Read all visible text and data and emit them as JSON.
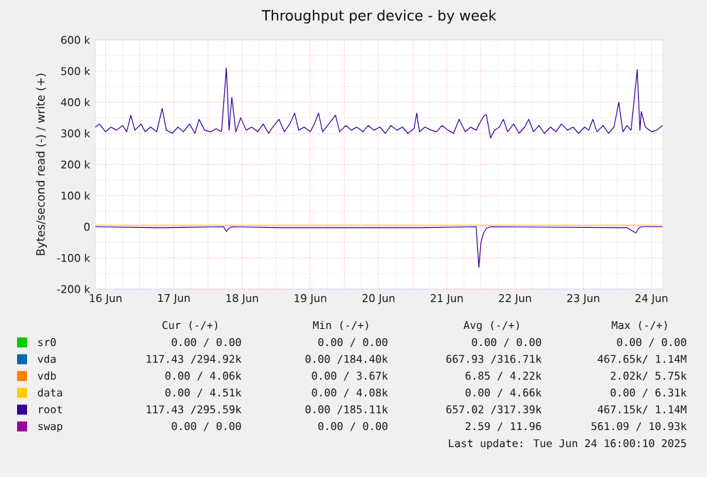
{
  "chart_data": {
    "type": "line",
    "title": "Throughput per device - by week",
    "ylabel": "Bytes/second read (-) / write (+)",
    "xlim": [
      "2025-06-16T08:24",
      "2025-06-24T16:00"
    ],
    "ylim": [
      -200,
      600
    ],
    "xticks": [
      {
        "value": "2025-06-16T12:00",
        "label": "16 Jun"
      },
      {
        "value": "2025-06-17T00:00",
        "label": null
      },
      {
        "value": "2025-06-17T12:00",
        "label": "17 Jun"
      },
      {
        "value": "2025-06-18T00:00",
        "label": null
      },
      {
        "value": "2025-06-18T12:00",
        "label": "18 Jun"
      },
      {
        "value": "2025-06-19T00:00",
        "label": null
      },
      {
        "value": "2025-06-19T12:00",
        "label": "19 Jun"
      },
      {
        "value": "2025-06-20T00:00",
        "label": null
      },
      {
        "value": "2025-06-20T12:00",
        "label": "20 Jun"
      },
      {
        "value": "2025-06-21T00:00",
        "label": null
      },
      {
        "value": "2025-06-21T12:00",
        "label": "21 Jun"
      },
      {
        "value": "2025-06-22T00:00",
        "label": null
      },
      {
        "value": "2025-06-22T12:00",
        "label": "22 Jun"
      },
      {
        "value": "2025-06-23T00:00",
        "label": null
      },
      {
        "value": "2025-06-23T12:00",
        "label": "23 Jun"
      },
      {
        "value": "2025-06-24T00:00",
        "label": null
      },
      {
        "value": "2025-06-24T12:00",
        "label": "24 Jun"
      }
    ],
    "yticks": [
      {
        "value": -200,
        "label": "-200 k"
      },
      {
        "value": -100,
        "label": "-100 k"
      },
      0,
      {
        "value": 100,
        "label": "100 k"
      },
      {
        "value": 200,
        "label": "200 k"
      },
      {
        "value": 300,
        "label": "300 k"
      },
      {
        "value": 400,
        "label": "400 k"
      },
      {
        "value": 500,
        "label": "500 k"
      },
      {
        "value": 600,
        "label": "600 k"
      }
    ],
    "grid": true,
    "legend": "bottom",
    "series": [
      {
        "name": "sr0",
        "color": "#00cc00"
      },
      {
        "name": "vda",
        "color": "#0066b3"
      },
      {
        "name": "vdb",
        "color": "#ff8000"
      },
      {
        "color": "#330099",
        "x": [
          "2025-06-16T08:24",
          "2025-06-17T07:12",
          "2025-06-18T05:31",
          "2025-06-18T06:29",
          "2025-06-18T07:26",
          "2025-06-18T08:24",
          "2025-06-19T02:53",
          "2025-06-21T01:26",
          "2025-06-21T22:19",
          "2025-06-21T23:17",
          "2025-06-22T00:00",
          "2025-06-22T00:58",
          "2025-06-22T01:55",
          "2025-06-22T03:22",
          "2025-06-24T03:22",
          "2025-06-24T06:29",
          "2025-06-24T07:26",
          "2025-06-24T08:24",
          "2025-06-24T15:50"
        ],
        "values": [
          0,
          -3,
          0,
          -15,
          -5,
          0,
          -3,
          -3,
          0,
          -130,
          -50,
          -20,
          -5,
          0,
          -3,
          -20,
          -5,
          0,
          0
        ]
      },
      {
        "name": "data",
        "color": "#ffcc00",
        "x": [
          "2025-06-16T08:24",
          "2025-06-24T15:50"
        ],
        "values": [
          5,
          5
        ]
      },
      {
        "name": "root",
        "color": "#330099",
        "x": [
          "2025-06-16T08:24",
          "2025-06-16T09:50",
          "2025-06-16T12:00",
          "2025-06-16T13:55",
          "2025-06-16T15:50",
          "2025-06-16T18:00",
          "2025-06-16T19:26",
          "2025-06-16T20:53",
          "2025-06-16T22:19",
          "2025-06-17T00:29",
          "2025-06-17T01:55",
          "2025-06-17T03:50",
          "2025-06-17T06:00",
          "2025-06-17T07:55",
          "2025-06-17T09:22",
          "2025-06-17T11:31",
          "2025-06-17T13:26",
          "2025-06-17T15:22",
          "2025-06-17T17:31",
          "2025-06-17T19:26",
          "2025-06-17T20:53",
          "2025-06-17T22:48",
          "2025-06-18T00:58",
          "2025-06-18T02:53",
          "2025-06-18T04:48",
          "2025-06-18T06:29",
          "2025-06-18T07:26",
          "2025-06-18T08:24",
          "2025-06-18T09:50",
          "2025-06-18T11:31",
          "2025-06-18T13:26",
          "2025-06-18T15:22",
          "2025-06-18T17:31",
          "2025-06-18T19:26",
          "2025-06-18T21:22",
          "2025-06-18T22:48",
          "2025-06-19T00:58",
          "2025-06-19T02:53",
          "2025-06-19T04:48",
          "2025-06-19T06:29",
          "2025-06-19T07:55",
          "2025-06-19T09:50",
          "2025-06-19T12:00",
          "2025-06-19T13:26",
          "2025-06-19T14:53",
          "2025-06-19T16:19",
          "2025-06-19T18:29",
          "2025-06-19T20:53",
          "2025-06-19T22:19",
          "2025-06-20T00:29",
          "2025-06-20T02:24",
          "2025-06-20T04:19",
          "2025-06-20T06:29",
          "2025-06-20T08:24",
          "2025-06-20T10:19",
          "2025-06-20T12:29",
          "2025-06-20T14:24",
          "2025-06-20T16:19",
          "2025-06-20T18:29",
          "2025-06-20T20:24",
          "2025-06-20T22:19",
          "2025-06-21T00:29",
          "2025-06-21T01:26",
          "2025-06-21T02:24",
          "2025-06-21T04:19",
          "2025-06-21T06:29",
          "2025-06-21T08:24",
          "2025-06-21T10:19",
          "2025-06-21T12:29",
          "2025-06-21T14:24",
          "2025-06-21T16:19",
          "2025-06-21T18:29",
          "2025-06-21T20:24",
          "2025-06-21T22:19",
          "2025-06-22T00:00",
          "2025-06-22T00:58",
          "2025-06-22T01:55",
          "2025-06-22T03:22",
          "2025-06-22T04:48",
          "2025-06-22T06:29",
          "2025-06-22T07:55",
          "2025-06-22T09:22",
          "2025-06-22T11:31",
          "2025-06-22T13:26",
          "2025-06-22T15:22",
          "2025-06-22T16:48",
          "2025-06-22T18:29",
          "2025-06-22T20:24",
          "2025-06-22T22:19",
          "2025-06-23T00:29",
          "2025-06-23T02:24",
          "2025-06-23T04:19",
          "2025-06-23T06:29",
          "2025-06-23T08:24",
          "2025-06-23T10:19",
          "2025-06-23T12:29",
          "2025-06-23T13:55",
          "2025-06-23T15:22",
          "2025-06-23T16:48",
          "2025-06-23T18:58",
          "2025-06-23T20:53",
          "2025-06-23T22:48",
          "2025-06-24T00:29",
          "2025-06-24T01:55",
          "2025-06-24T03:22",
          "2025-06-24T04:48",
          "2025-06-24T06:58",
          "2025-06-24T07:55",
          "2025-06-24T08:24",
          "2025-06-24T09:50",
          "2025-06-24T12:00",
          "2025-06-24T13:55",
          "2025-06-24T15:50"
        ],
        "values": [
          320,
          330,
          305,
          320,
          310,
          325,
          305,
          358,
          310,
          330,
          305,
          320,
          305,
          380,
          310,
          300,
          320,
          305,
          330,
          300,
          345,
          310,
          305,
          315,
          305,
          510,
          310,
          415,
          305,
          350,
          310,
          320,
          305,
          330,
          300,
          320,
          345,
          305,
          330,
          365,
          310,
          320,
          305,
          330,
          365,
          305,
          330,
          358,
          305,
          325,
          310,
          320,
          305,
          325,
          310,
          320,
          300,
          325,
          310,
          320,
          300,
          315,
          365,
          305,
          320,
          310,
          305,
          325,
          310,
          300,
          345,
          305,
          320,
          310,
          340,
          355,
          360,
          285,
          310,
          320,
          345,
          305,
          330,
          300,
          320,
          345,
          305,
          325,
          300,
          320,
          305,
          330,
          310,
          320,
          300,
          320,
          310,
          345,
          305,
          325,
          300,
          320,
          400,
          305,
          325,
          310,
          505,
          310,
          370,
          320,
          305,
          310,
          325
        ]
      },
      {
        "name": "swap",
        "color": "#990099"
      }
    ],
    "annotations": [
      "Cur (-/+)",
      "Min (-/+)",
      "Avg (-/+)",
      "Max (-/+)",
      "0.00 / 0.00",
      "0.00 / 0.00",
      "0.00 / 0.00",
      "0.00 / 0.00",
      "117.43 /294.92k",
      "0.00 /184.40k",
      "667.93 /316.71k",
      "467.65k/ 1.14M",
      "0.00 / 4.06k",
      "0.00 / 3.67k",
      "6.85 / 4.22k",
      "2.02k/ 5.75k",
      "0.00 / 4.51k",
      "0.00 / 4.08k",
      "0.00 / 4.66k",
      "0.00 / 6.31k",
      "117.43 /295.59k",
      "0.00 /185.11k",
      "657.02 /317.39k",
      "467.15k/ 1.14M",
      "0.00 / 0.00",
      "0.00 / 0.00",
      "2.59 / 11.96",
      "561.09 / 10.93k",
      "Last update: Tue Jun 24 16:00:10 2025"
    ]
  }
}
